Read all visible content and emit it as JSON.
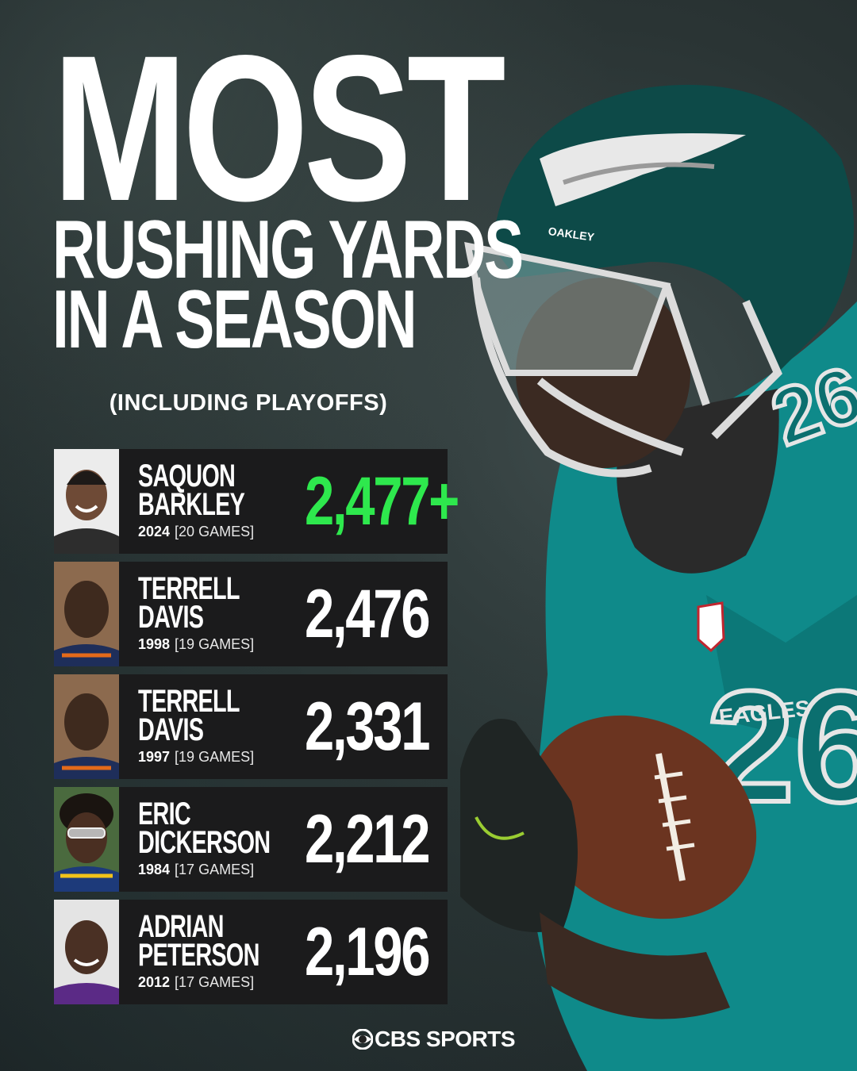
{
  "headline": {
    "line1": "MOST",
    "line2": "RUSHING YARDS",
    "line3": "IN A SEASON",
    "subtitle": "(INCLUDING PLAYOFFS)"
  },
  "highlight_color": "#2ee84d",
  "rows": [
    {
      "first": "SAQUON",
      "last": "BARKLEY",
      "year": "2024",
      "games": "[20 GAMES]",
      "yards": "2,477+"
    },
    {
      "first": "TERRELL",
      "last": "DAVIS",
      "year": "1998",
      "games": "[19 GAMES]",
      "yards": "2,476"
    },
    {
      "first": "TERRELL",
      "last": "DAVIS",
      "year": "1997",
      "games": "[19 GAMES]",
      "yards": "2,331"
    },
    {
      "first": "ERIC",
      "last": "DICKERSON",
      "year": "1984",
      "games": "[17 GAMES]",
      "yards": "2,212"
    },
    {
      "first": "ADRIAN",
      "last": "PETERSON",
      "year": "2012",
      "games": "[17 GAMES]",
      "yards": "2,196"
    }
  ],
  "brand": "CBS SPORTS",
  "jersey_text": "EAGLES",
  "helmet_text": "OAKLEY"
}
